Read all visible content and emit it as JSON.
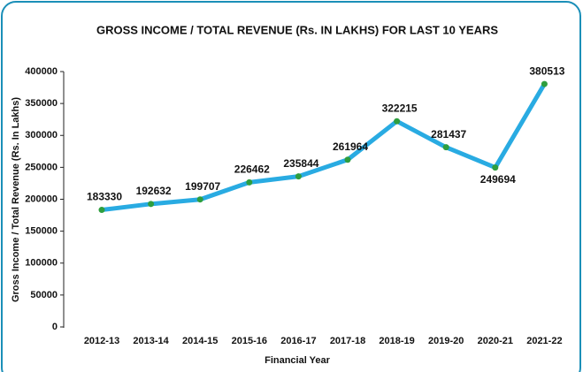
{
  "chart_data": {
    "type": "line",
    "title": "GROSS INCOME / TOTAL REVENUE (Rs. IN LAKHS) FOR LAST 10 YEARS",
    "x_label": "Financial Year",
    "y_label": "Gross Income / Total Revenue (Rs. In Lakhs)",
    "categories": [
      "2012-13",
      "2013-14",
      "2014-15",
      "2015-16",
      "2016-17",
      "2017-18",
      "2018-19",
      "2019-20",
      "2020-21",
      "2021-22"
    ],
    "series": [
      {
        "name": "Gross Income / Total Revenue",
        "color": "#29abe2",
        "marker_color": "#2e9e3e",
        "values": [
          183330,
          192632,
          199707,
          226462,
          235844,
          261964,
          322215,
          281437,
          249694,
          380513
        ]
      }
    ],
    "ylim": [
      0,
      400000
    ],
    "yticks": [
      0,
      50000,
      100000,
      150000,
      200000,
      250000,
      300000,
      350000,
      400000
    ],
    "grid": false,
    "legend": false
  }
}
